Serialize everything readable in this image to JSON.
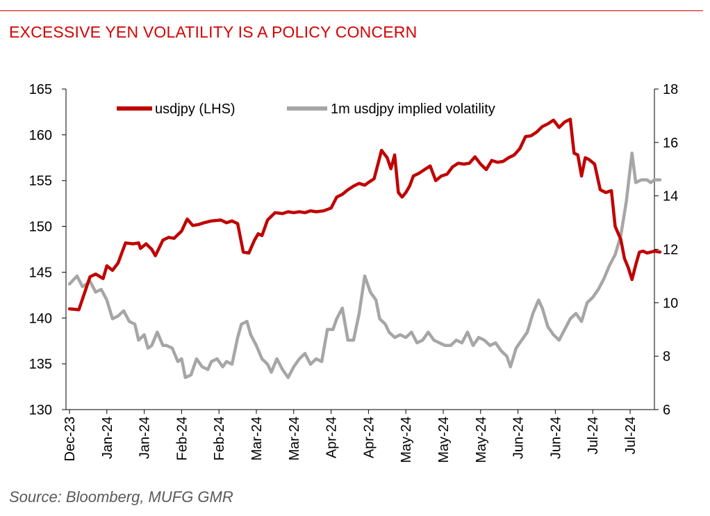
{
  "title": "EXCESSIVE YEN VOLATILITY IS A POLICY CONCERN",
  "source": "Source: Bloomberg, MUFG GMR",
  "colors": {
    "accent": "#d50000",
    "usdjpy": "#c00000",
    "vol": "#a6a6a6"
  },
  "chart_data": {
    "type": "line",
    "legend_position": "top",
    "grid": false,
    "legend": [
      "usdjpy (LHS)",
      "1m usdjpy implied volatility"
    ],
    "x_tick_labels": [
      "Dec-23",
      "Jan-24",
      "Jan-24",
      "Feb-24",
      "Feb-24",
      "Mar-24",
      "Mar-24",
      "Apr-24",
      "Apr-24",
      "May-24",
      "May-24",
      "May-24",
      "Jun-24",
      "Jun-24",
      "Jul-24",
      "Jul-24"
    ],
    "y_left": {
      "ylim": [
        130,
        165
      ],
      "ticks": [
        130,
        135,
        140,
        145,
        150,
        155,
        160,
        165
      ]
    },
    "y_right": {
      "ylim": [
        6,
        18
      ],
      "ticks": [
        6,
        8,
        10,
        12,
        14,
        16,
        18
      ]
    },
    "series": [
      {
        "name": "usdjpy (LHS)",
        "axis": "left",
        "x": [
          0,
          0.25,
          0.55,
          0.7,
          0.9,
          1,
          1.15,
          1.3,
          1.5,
          1.7,
          1.85,
          1.9,
          2.05,
          2.2,
          2.3,
          2.5,
          2.65,
          2.8,
          3,
          3.15,
          3.3,
          3.45,
          3.6,
          3.8,
          4.05,
          4.2,
          4.35,
          4.5,
          4.65,
          4.8,
          4.95,
          5.05,
          5.15,
          5.3,
          5.5,
          5.7,
          5.85,
          6,
          6.15,
          6.3,
          6.45,
          6.6,
          6.8,
          7,
          7.15,
          7.3,
          7.45,
          7.6,
          7.75,
          7.9,
          8,
          8.15,
          8.35,
          8.5,
          8.6,
          8.7,
          8.8,
          8.9,
          9.0,
          9.1,
          9.2,
          9.35,
          9.5,
          9.65,
          9.8,
          9.95,
          10.1,
          10.25,
          10.4,
          10.55,
          10.7,
          10.85,
          11.0,
          11.15,
          11.3,
          11.45,
          11.6,
          11.75,
          11.9,
          12.05,
          12.2,
          12.35,
          12.5,
          12.65,
          12.8,
          12.95,
          13.1,
          13.25,
          13.4,
          13.5,
          13.6,
          13.7,
          13.8,
          13.9,
          14.05,
          14.2,
          14.35,
          14.5,
          14.6,
          14.75,
          14.85,
          14.95,
          15.05,
          15.15,
          15.25,
          15.35,
          15.45,
          15.55,
          15.65,
          15.8
        ],
        "values": [
          141,
          140.9,
          144.5,
          144.8,
          144.3,
          145.7,
          145.2,
          146,
          148.2,
          148.1,
          148.2,
          147.6,
          148.1,
          147.5,
          146.8,
          148.5,
          148.8,
          148.7,
          149.5,
          150.8,
          150.1,
          150.2,
          150.4,
          150.6,
          150.7,
          150.4,
          150.6,
          150.3,
          147.2,
          147.1,
          148.5,
          149.2,
          149,
          150.7,
          151.5,
          151.4,
          151.6,
          151.5,
          151.6,
          151.5,
          151.7,
          151.6,
          151.7,
          152,
          153.2,
          153.5,
          154,
          154.4,
          154.7,
          154.5,
          154.8,
          155.2,
          158.3,
          157.5,
          156.3,
          157.8,
          153.7,
          153.2,
          153.7,
          154.4,
          155.5,
          155.8,
          156.2,
          156.6,
          155,
          155.5,
          155.7,
          156.5,
          156.9,
          156.8,
          156.9,
          157.6,
          156.8,
          156.2,
          157.2,
          157,
          157.1,
          157.5,
          157.8,
          158.5,
          159.8,
          159.9,
          160.3,
          160.9,
          161.2,
          161.6,
          160.8,
          161.4,
          161.7,
          158,
          157.8,
          155.5,
          157.5,
          157.3,
          156.8,
          154,
          153.7,
          153.9,
          150,
          148.6,
          146.5,
          145.5,
          144.2,
          145.8,
          147.2,
          147.3,
          147.1,
          147.2,
          147.3,
          147.2
        ],
        "display_count": 106
      },
      {
        "name": "1m usdjpy implied volatility",
        "axis": "right",
        "x": [
          0,
          0.2,
          0.35,
          0.55,
          0.7,
          0.85,
          1.0,
          1.15,
          1.3,
          1.45,
          1.6,
          1.75,
          1.85,
          2.0,
          2.1,
          2.2,
          2.35,
          2.5,
          2.6,
          2.75,
          2.9,
          3.0,
          3.1,
          3.25,
          3.4,
          3.55,
          3.7,
          3.8,
          3.95,
          4.1,
          4.2,
          4.35,
          4.5,
          4.6,
          4.75,
          4.85,
          5.0,
          5.15,
          5.3,
          5.4,
          5.55,
          5.7,
          5.85,
          6.0,
          6.15,
          6.3,
          6.45,
          6.6,
          6.75,
          6.9,
          7.05,
          7.15,
          7.3,
          7.45,
          7.6,
          7.75,
          7.9,
          8.05,
          8.2,
          8.3,
          8.45,
          8.55,
          8.7,
          8.85,
          9.0,
          9.15,
          9.3,
          9.45,
          9.6,
          9.75,
          9.9,
          10.05,
          10.2,
          10.35,
          10.5,
          10.65,
          10.8,
          10.95,
          11.1,
          11.25,
          11.4,
          11.55,
          11.7,
          11.8,
          11.95,
          12.1,
          12.25,
          12.4,
          12.55,
          12.65,
          12.8,
          12.95,
          13.1,
          13.25,
          13.4,
          13.55,
          13.7,
          13.85,
          14.0,
          14.15,
          14.3,
          14.45,
          14.6,
          14.75,
          14.9,
          15.05,
          15.15,
          15.3,
          15.45,
          15.55,
          15.65,
          15.75,
          15.8
        ],
        "values": [
          10.7,
          11,
          10.6,
          10.8,
          10.4,
          10.5,
          10.1,
          9.4,
          9.5,
          9.7,
          9.3,
          9.2,
          8.6,
          8.8,
          8.3,
          8.4,
          8.9,
          8.4,
          8.4,
          8.3,
          7.8,
          7.9,
          7.2,
          7.3,
          7.9,
          7.6,
          7.5,
          7.8,
          7.9,
          7.6,
          7.8,
          7.7,
          8.7,
          9.2,
          9.3,
          8.8,
          8.4,
          7.9,
          7.7,
          7.4,
          7.9,
          7.5,
          7.2,
          7.6,
          7.9,
          8.1,
          7.7,
          7.9,
          7.8,
          9.0,
          9.0,
          9.4,
          9.8,
          8.6,
          8.6,
          9.6,
          11.0,
          10.4,
          10.1,
          9.4,
          9.2,
          8.9,
          8.7,
          8.8,
          8.7,
          8.9,
          8.5,
          8.6,
          8.9,
          8.6,
          8.5,
          8.4,
          8.4,
          8.6,
          8.5,
          8.9,
          8.4,
          8.7,
          8.6,
          8.4,
          8.5,
          8.2,
          8.0,
          7.6,
          8.3,
          8.6,
          8.9,
          9.6,
          10.1,
          9.8,
          9.1,
          8.8,
          8.6,
          9.0,
          9.4,
          9.6,
          9.3,
          10.0,
          10.2,
          10.5,
          10.9,
          11.4,
          11.8,
          12.5,
          13.8,
          15.6,
          14.5,
          14.6,
          14.6,
          14.5,
          14.6,
          14.6,
          14.6
        ],
        "display_count": 111
      }
    ]
  }
}
